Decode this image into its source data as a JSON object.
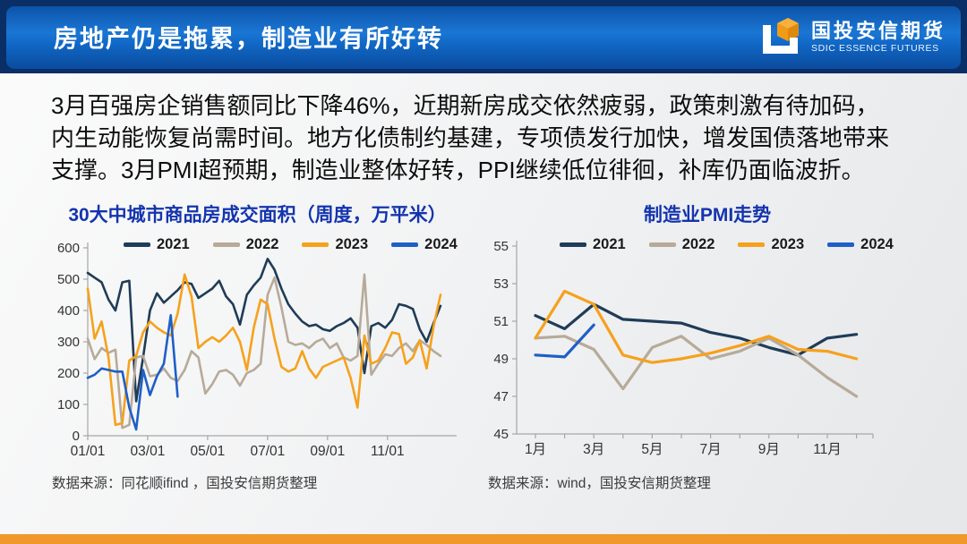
{
  "header": {
    "title": "房地产仍是拖累，制造业有所好转",
    "logo": {
      "name_cn": "国投安信期货",
      "name_en": "SDIC ESSENCE FUTURES"
    }
  },
  "intro": {
    "lines": [
      "3月百强房企销售额同比下降46%，近期新房成交依然疲弱，政策刺激有待加码，",
      "内生动能恢复尚需时间。地方化债制约基建，专项债发行加快，增发国债落地带来",
      "支撑。3月PMI超预期，制造业整体好转，PPI继续低位徘徊，补库仍面临波折。"
    ]
  },
  "colors": {
    "header_navy": "#0a2e66",
    "header_gradient_mid": "#1a76d4",
    "footer_orange": "#f0982a",
    "chart_title_blue": "#1434ae",
    "axis_gray": "#a6a6a6",
    "logo_orange": "#f49b15"
  },
  "chart_data": [
    {
      "type": "line",
      "title": "30大中城市商品房成交面积（周度，万平米）",
      "x_unit": "weekly, Jan–Dec",
      "xtick_labels": [
        "01/01",
        "03/01",
        "05/01",
        "07/01",
        "09/01",
        "11/01"
      ],
      "ylim": [
        0,
        600
      ],
      "yticks": [
        0,
        100,
        200,
        300,
        400,
        500,
        600
      ],
      "grid": false,
      "legend_position": "top",
      "source": "数据来源：同花顺ifind ，国投安信期货整理",
      "series": [
        {
          "name": "2021",
          "color": "#1f3c58",
          "values": [
            520,
            505,
            490,
            435,
            400,
            490,
            495,
            110,
            250,
            400,
            455,
            425,
            445,
            465,
            490,
            485,
            440,
            455,
            470,
            495,
            445,
            420,
            355,
            450,
            480,
            505,
            565,
            530,
            470,
            420,
            390,
            365,
            350,
            355,
            340,
            335,
            350,
            360,
            375,
            345,
            200,
            350,
            360,
            345,
            370,
            420,
            415,
            405,
            340,
            300,
            360,
            415
          ]
        },
        {
          "name": "2022",
          "color": "#b7aa99",
          "values": [
            310,
            245,
            280,
            265,
            275,
            25,
            35,
            250,
            255,
            190,
            195,
            215,
            185,
            175,
            210,
            270,
            250,
            135,
            165,
            205,
            210,
            195,
            160,
            200,
            210,
            230,
            450,
            505,
            410,
            300,
            290,
            295,
            280,
            300,
            310,
            280,
            295,
            250,
            240,
            255,
            515,
            195,
            230,
            260,
            255,
            280,
            295,
            270,
            305,
            290,
            270,
            255
          ]
        },
        {
          "name": "2023",
          "color": "#f6a11c",
          "values": [
            470,
            310,
            365,
            250,
            35,
            40,
            240,
            255,
            330,
            365,
            345,
            330,
            320,
            390,
            515,
            445,
            280,
            300,
            315,
            300,
            320,
            345,
            300,
            210,
            345,
            435,
            420,
            310,
            220,
            205,
            215,
            270,
            215,
            185,
            220,
            230,
            240,
            250,
            185,
            90,
            320,
            230,
            240,
            280,
            330,
            325,
            230,
            250,
            305,
            215,
            350,
            450
          ]
        },
        {
          "name": "2024",
          "color": "#1e5fc8",
          "values": [
            185,
            195,
            215,
            210,
            205,
            205,
            90,
            20,
            210,
            130,
            190,
            230,
            385,
            125
          ]
        }
      ]
    },
    {
      "type": "line",
      "title": "制造业PMI走势",
      "categories": [
        "1月",
        "2月",
        "3月",
        "4月",
        "5月",
        "6月",
        "7月",
        "8月",
        "9月",
        "10月",
        "11月",
        "12月"
      ],
      "xtick_labels": [
        "1月",
        "3月",
        "5月",
        "7月",
        "9月",
        "11月"
      ],
      "ylim": [
        45,
        55
      ],
      "yticks": [
        45,
        47,
        49,
        51,
        53,
        55
      ],
      "grid": false,
      "legend_position": "top",
      "source": "数据来源：wind，国投安信期货整理",
      "series": [
        {
          "name": "2021",
          "color": "#1f3c58",
          "values": [
            51.3,
            50.6,
            51.9,
            51.1,
            51.0,
            50.9,
            50.4,
            50.1,
            49.6,
            49.2,
            50.1,
            50.3
          ]
        },
        {
          "name": "2022",
          "color": "#b7aa99",
          "values": [
            50.1,
            50.2,
            49.5,
            47.4,
            49.6,
            50.2,
            49.0,
            49.4,
            50.1,
            49.2,
            48.0,
            47.0
          ]
        },
        {
          "name": "2023",
          "color": "#f6a11c",
          "values": [
            50.1,
            52.6,
            51.9,
            49.2,
            48.8,
            49.0,
            49.3,
            49.7,
            50.2,
            49.5,
            49.4,
            49.0
          ]
        },
        {
          "name": "2024",
          "color": "#1e5fc8",
          "values": [
            49.2,
            49.1,
            50.8
          ]
        }
      ]
    }
  ]
}
